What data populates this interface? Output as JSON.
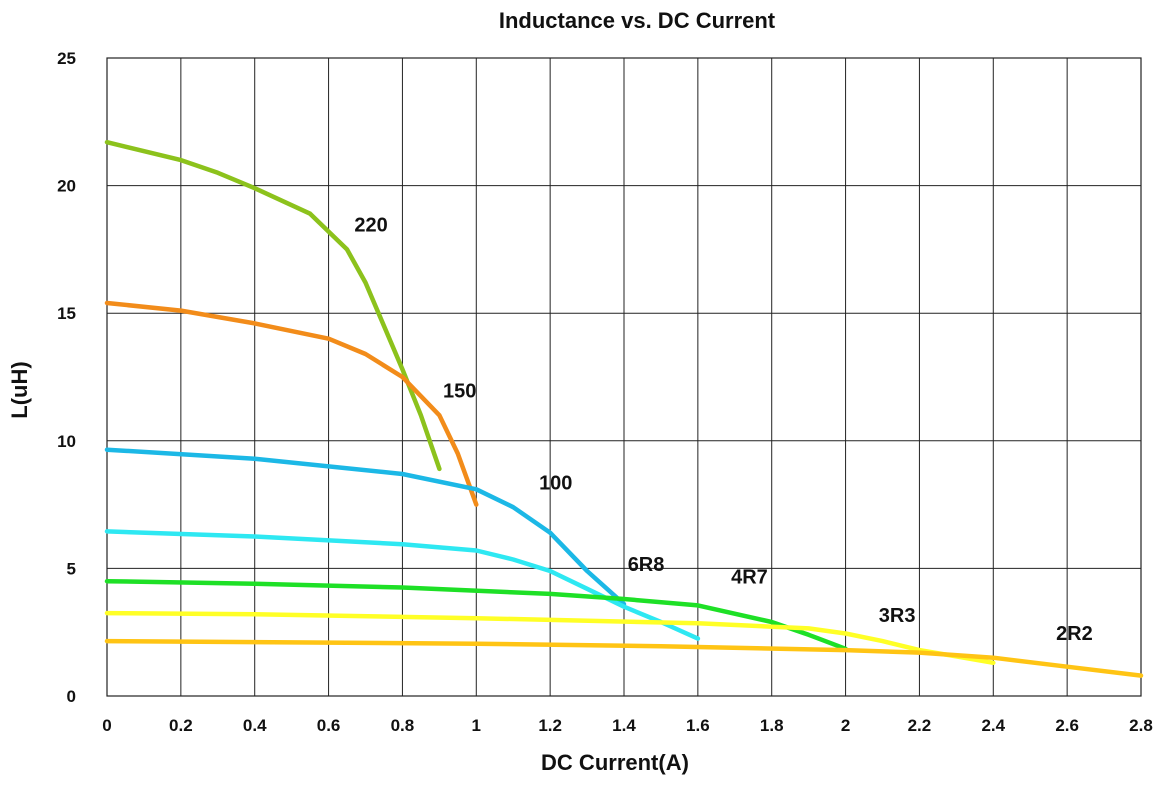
{
  "chart_data": {
    "type": "line",
    "title": "Inductance vs. DC Current",
    "xlabel": "DC Current(A)",
    "ylabel": "L(uH)",
    "xlim": [
      0,
      2.8
    ],
    "ylim": [
      0,
      25
    ],
    "x_ticks": [
      "0",
      "0.2",
      "0.4",
      "0.6",
      "0.8",
      "1",
      "1.2",
      "1.4",
      "1.6",
      "1.8",
      "2",
      "2.2",
      "2.4",
      "2.6",
      "2.8"
    ],
    "y_ticks": [
      "0",
      "5",
      "10",
      "15",
      "20",
      "25"
    ],
    "grid": true,
    "series": [
      {
        "name": "220",
        "color": "#8cc21c",
        "points": [
          [
            0,
            21.7
          ],
          [
            0.2,
            21.0
          ],
          [
            0.3,
            20.5
          ],
          [
            0.4,
            19.9
          ],
          [
            0.55,
            18.9
          ],
          [
            0.65,
            17.5
          ],
          [
            0.7,
            16.2
          ],
          [
            0.75,
            14.5
          ],
          [
            0.8,
            12.8
          ],
          [
            0.85,
            11.0
          ],
          [
            0.9,
            8.9
          ]
        ]
      },
      {
        "name": "150",
        "color": "#f28c1a",
        "points": [
          [
            0,
            15.4
          ],
          [
            0.2,
            15.1
          ],
          [
            0.4,
            14.6
          ],
          [
            0.5,
            14.3
          ],
          [
            0.6,
            14.0
          ],
          [
            0.7,
            13.4
          ],
          [
            0.8,
            12.5
          ],
          [
            0.9,
            11.0
          ],
          [
            0.95,
            9.5
          ],
          [
            1.0,
            7.5
          ]
        ]
      },
      {
        "name": "100",
        "color": "#1cb8e6",
        "points": [
          [
            0,
            9.65
          ],
          [
            0.4,
            9.3
          ],
          [
            0.8,
            8.7
          ],
          [
            1.0,
            8.1
          ],
          [
            1.1,
            7.4
          ],
          [
            1.2,
            6.4
          ],
          [
            1.3,
            4.9
          ],
          [
            1.4,
            3.6
          ]
        ]
      },
      {
        "name": "6R8",
        "color": "#2ee8f2",
        "points": [
          [
            0,
            6.45
          ],
          [
            0.4,
            6.25
          ],
          [
            0.8,
            5.95
          ],
          [
            1.0,
            5.7
          ],
          [
            1.1,
            5.35
          ],
          [
            1.2,
            4.9
          ],
          [
            1.3,
            4.2
          ],
          [
            1.4,
            3.5
          ],
          [
            1.5,
            2.9
          ],
          [
            1.6,
            2.25
          ]
        ]
      },
      {
        "name": "4R7",
        "color": "#1ee026",
        "points": [
          [
            0,
            4.5
          ],
          [
            0.4,
            4.4
          ],
          [
            0.8,
            4.25
          ],
          [
            1.2,
            4.0
          ],
          [
            1.4,
            3.8
          ],
          [
            1.6,
            3.55
          ],
          [
            1.8,
            2.9
          ],
          [
            1.9,
            2.4
          ],
          [
            2.0,
            1.85
          ]
        ]
      },
      {
        "name": "3R3",
        "color": "#ffff26",
        "points": [
          [
            0,
            3.25
          ],
          [
            0.4,
            3.2
          ],
          [
            1.0,
            3.05
          ],
          [
            1.6,
            2.85
          ],
          [
            1.9,
            2.65
          ],
          [
            2.0,
            2.45
          ],
          [
            2.1,
            2.15
          ],
          [
            2.2,
            1.8
          ],
          [
            2.3,
            1.55
          ],
          [
            2.4,
            1.3
          ]
        ]
      },
      {
        "name": "2R2",
        "color": "#ffc414",
        "points": [
          [
            0,
            2.15
          ],
          [
            0.5,
            2.1
          ],
          [
            1.0,
            2.05
          ],
          [
            1.5,
            1.95
          ],
          [
            2.0,
            1.8
          ],
          [
            2.2,
            1.7
          ],
          [
            2.4,
            1.5
          ],
          [
            2.6,
            1.15
          ],
          [
            2.8,
            0.8
          ]
        ]
      }
    ],
    "labels": [
      {
        "text": "220",
        "x": 0.67,
        "y": 18.2
      },
      {
        "text": "150",
        "x": 0.91,
        "y": 11.7
      },
      {
        "text": "100",
        "x": 1.17,
        "y": 8.1
      },
      {
        "text": "6R8",
        "x": 1.41,
        "y": 4.9
      },
      {
        "text": "4R7",
        "x": 1.69,
        "y": 4.4
      },
      {
        "text": "3R3",
        "x": 2.09,
        "y": 2.9
      },
      {
        "text": "2R2",
        "x": 2.57,
        "y": 2.2
      }
    ]
  }
}
